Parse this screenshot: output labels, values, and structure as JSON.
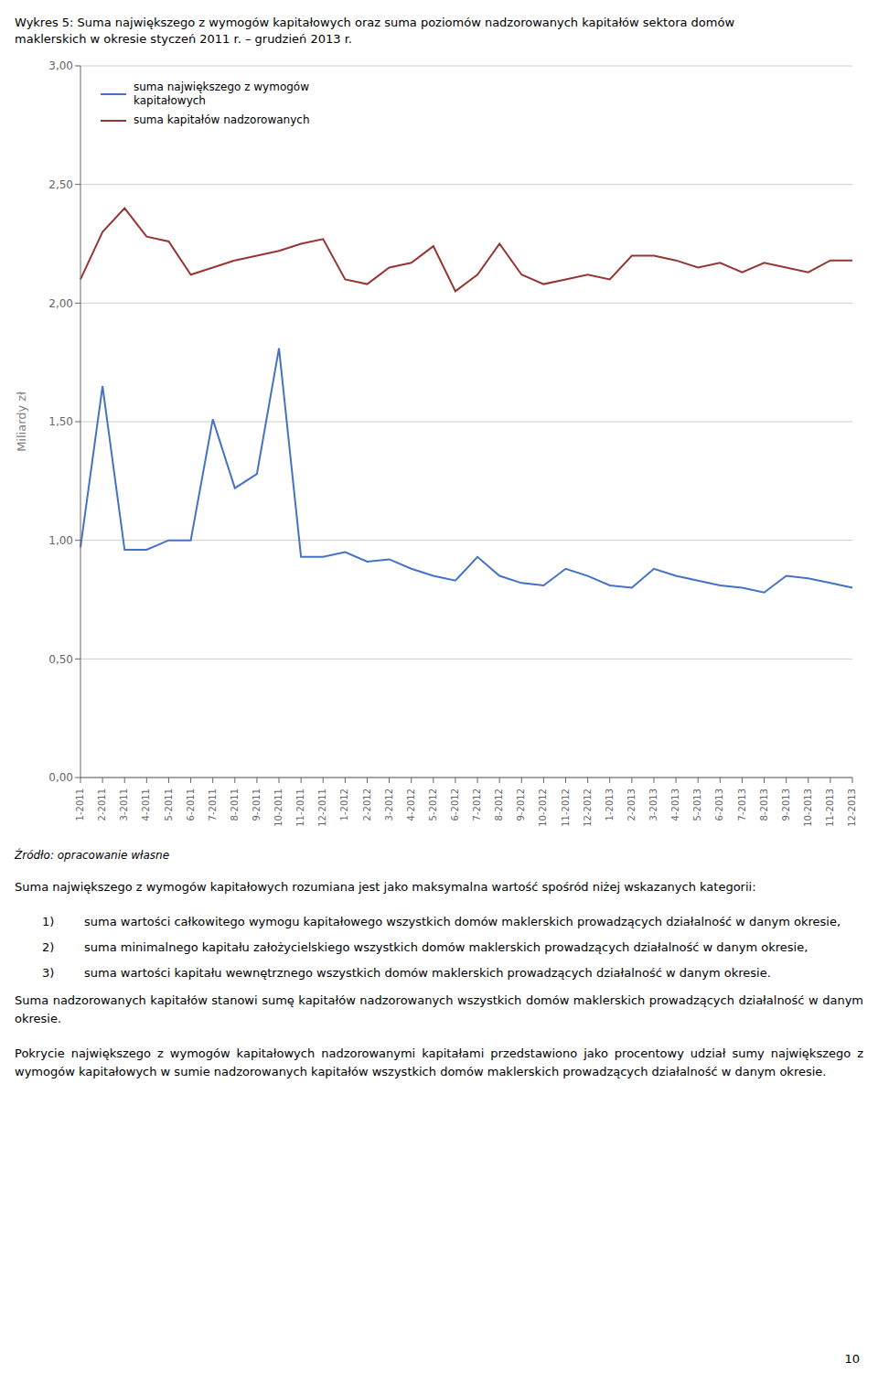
{
  "chart_data": {
    "type": "line",
    "title": "Wykres 5: Suma największego z wymogów kapitałowych oraz suma poziomów nadzorowanych kapitałów sektora domów\nmaklerskich w okresie styczeń 2011 r. – grudzień 2013 r.",
    "y_label": "Miliardy zł",
    "categories": [
      "1-2011",
      "2-2011",
      "3-2011",
      "4-2011",
      "5-2011",
      "6-2011",
      "7-2011",
      "8-2011",
      "9-2011",
      "10-2011",
      "11-2011",
      "12-2011",
      "1-2012",
      "2-2012",
      "3-2012",
      "4-2012",
      "5-2012",
      "6-2012",
      "7-2012",
      "8-2012",
      "9-2012",
      "10-2012",
      "11-2012",
      "12-2012",
      "1-2013",
      "2-2013",
      "3-2013",
      "4-2013",
      "5-2013",
      "6-2013",
      "7-2013",
      "8-2013",
      "9-2013",
      "10-2013",
      "11-2013",
      "12-2013"
    ],
    "series": [
      {
        "name": "suma największego z wymogów\nkapitałowych",
        "color": "#4472C4",
        "values": [
          0.97,
          1.65,
          0.96,
          0.96,
          1.0,
          1.0,
          1.51,
          1.22,
          1.28,
          1.81,
          0.93,
          0.93,
          0.95,
          0.91,
          0.92,
          0.88,
          0.85,
          0.83,
          0.93,
          0.85,
          0.82,
          0.81,
          0.88,
          0.85,
          0.81,
          0.8,
          0.88,
          0.85,
          0.83,
          0.81,
          0.8,
          0.78,
          0.85,
          0.84,
          0.82,
          0.8
        ]
      },
      {
        "name": "suma kapitałów nadzorowanych",
        "color": "#963634",
        "values": [
          2.1,
          2.3,
          2.4,
          2.28,
          2.26,
          2.12,
          2.15,
          2.18,
          2.2,
          2.22,
          2.25,
          2.27,
          2.1,
          2.08,
          2.15,
          2.17,
          2.24,
          2.05,
          2.12,
          2.25,
          2.12,
          2.08,
          2.1,
          2.12,
          2.1,
          2.2,
          2.2,
          2.18,
          2.15,
          2.17,
          2.13,
          2.17,
          2.15,
          2.13,
          2.18,
          2.18
        ]
      }
    ],
    "ylim": [
      0.0,
      3.0
    ],
    "yticks": [
      {
        "value": 0.0,
        "label": "0,00"
      },
      {
        "value": 0.5,
        "label": "0,50"
      },
      {
        "value": 1.0,
        "label": "1,00"
      },
      {
        "value": 1.5,
        "label": "1,50"
      },
      {
        "value": 2.0,
        "label": "2,00"
      },
      {
        "value": 2.5,
        "label": "2,50"
      },
      {
        "value": 3.0,
        "label": "3,00"
      }
    ],
    "grid": true,
    "legend": "upper left",
    "source": "Źródło: opracowanie własne",
    "annotations": [
      "Suma największego z wymogów kapitałowych rozumiana jest jako maksymalna wartość spośród niżej wskazanych kategorii:",
      "1) suma wartości całkowitego wymogu kapitałowego wszystkich domów maklerskich prowadzących działalność w danym okresie,",
      "2) suma minimalnego kapitału założycielskiego wszystkich domów maklerskich prowadzących działalność w danym okresie,",
      "3) suma wartości kapitału wewnętrznego wszystkich domów maklerskich prowadzących działalność w danym okresie.",
      "Suma nadzorowanych kapitałów stanowi sumę kapitałów nadzorowanych wszystkich domów maklerskich prowadzących działalność w danym okresie.",
      "Pokrycie największego z wymogów kapitałowych nadzorowanymi kapitałami przedstawiono jako procentowy udział sumy największego z wymogów kapitałowych w sumie nadzorowanych kapitałów wszystkich domów maklerskich prowadzących działalność w danym okresie."
    ],
    "page_number": "10"
  }
}
